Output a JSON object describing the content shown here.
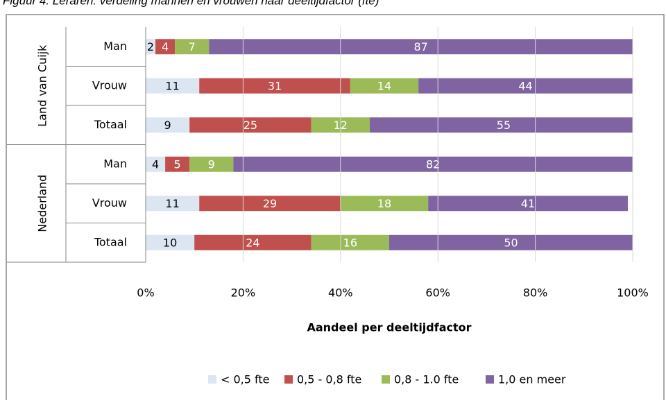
{
  "chart_data": {
    "type": "stacked-bar-horizontal",
    "title": "Figuur 4. Leraren: verdeling mannen en vrouwen naar deeltijdfactor (fte)",
    "x_label": "Aandeel per deeltijdfactor",
    "groups": [
      {
        "name": "Land van Cuijk",
        "categories": [
          "Man",
          "Vrouw",
          "Totaal"
        ]
      },
      {
        "name": "Nederland",
        "categories": [
          "Man",
          "Vrouw",
          "Totaal"
        ]
      }
    ],
    "series": [
      {
        "name": "< 0,5 fte",
        "color": "#dce6f2",
        "values": [
          2,
          11,
          9,
          4,
          11,
          10
        ]
      },
      {
        "name": "0,5 - 0,8 fte",
        "color": "#c0504d",
        "values": [
          4,
          31,
          25,
          5,
          29,
          24
        ]
      },
      {
        "name": "0,8 - 1.0 fte",
        "color": "#9bbb59",
        "values": [
          7,
          14,
          12,
          9,
          18,
          16
        ]
      },
      {
        "name": "1,0 en meer",
        "color": "#8064a2",
        "values": [
          87,
          44,
          55,
          82,
          41,
          50
        ]
      }
    ],
    "xlim": [
      0,
      100
    ],
    "xticks": [
      {
        "value": 0,
        "label": "0%"
      },
      {
        "value": 20,
        "label": "20%"
      },
      {
        "value": 40,
        "label": "40%"
      },
      {
        "value": 60,
        "label": "60%"
      },
      {
        "value": 80,
        "label": "80%"
      },
      {
        "value": 100,
        "label": "100%"
      }
    ],
    "grid": true,
    "legend": "bottom"
  }
}
